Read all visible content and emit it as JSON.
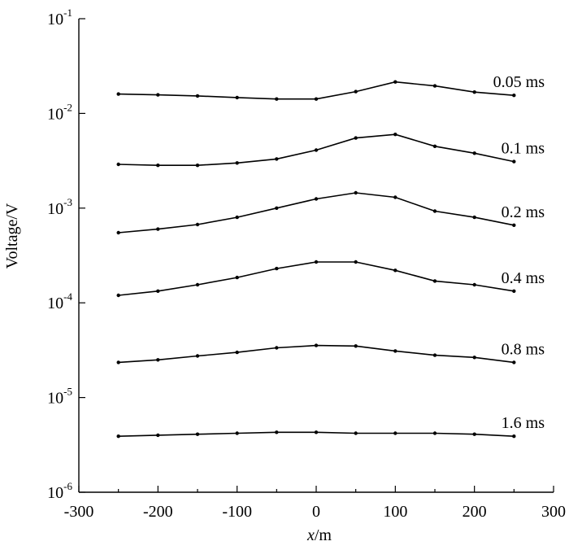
{
  "chart_data": {
    "type": "line",
    "xlabel_var": "x",
    "xlabel_unit": "/m",
    "ylabel": "Voltage/V",
    "xlim": [
      -300,
      300
    ],
    "ylim": [
      1e-06,
      0.1
    ],
    "yscale": "log",
    "x_ticks": [
      "-300",
      "-200",
      "-100",
      "0",
      "100",
      "200",
      "300"
    ],
    "y_ticks": [
      {
        "base": "10",
        "exp": "-6",
        "value": 1e-06
      },
      {
        "base": "10",
        "exp": "-5",
        "value": 1e-05
      },
      {
        "base": "10",
        "exp": "-4",
        "value": 0.0001
      },
      {
        "base": "10",
        "exp": "-3",
        "value": 0.001
      },
      {
        "base": "10",
        "exp": "-2",
        "value": 0.01
      },
      {
        "base": "10",
        "exp": "-1",
        "value": 0.1
      }
    ],
    "x": [
      -250,
      -200,
      -150,
      -100,
      -50,
      0,
      50,
      100,
      150,
      200,
      250
    ],
    "series": [
      {
        "name": "0.05 ms",
        "values": [
          0.016,
          0.0157,
          0.0153,
          0.0147,
          0.0142,
          0.0142,
          0.017,
          0.0215,
          0.0195,
          0.0168,
          0.0155
        ]
      },
      {
        "name": "0.1 ms",
        "values": [
          0.0029,
          0.00283,
          0.00283,
          0.003,
          0.0033,
          0.0041,
          0.0055,
          0.006,
          0.0045,
          0.0038,
          0.0031
        ]
      },
      {
        "name": "0.2 ms",
        "values": [
          0.00055,
          0.0006,
          0.00067,
          0.0008,
          0.001,
          0.00125,
          0.00145,
          0.0013,
          0.00093,
          0.0008,
          0.00066
        ]
      },
      {
        "name": "0.4 ms",
        "values": [
          0.00012,
          0.000133,
          0.000155,
          0.000185,
          0.00023,
          0.00027,
          0.00027,
          0.00022,
          0.00017,
          0.000155,
          0.000133
        ]
      },
      {
        "name": "0.8 ms",
        "values": [
          2.35e-05,
          2.5e-05,
          2.75e-05,
          3e-05,
          3.35e-05,
          3.55e-05,
          3.5e-05,
          3.1e-05,
          2.8e-05,
          2.65e-05,
          2.35e-05
        ]
      },
      {
        "name": "1.6 ms",
        "values": [
          3.9e-06,
          4e-06,
          4.1e-06,
          4.2e-06,
          4.3e-06,
          4.3e-06,
          4.2e-06,
          4.2e-06,
          4.2e-06,
          4.1e-06,
          3.9e-06
        ]
      }
    ],
    "grid": false,
    "legend": "inline labels at right end of each curve"
  }
}
